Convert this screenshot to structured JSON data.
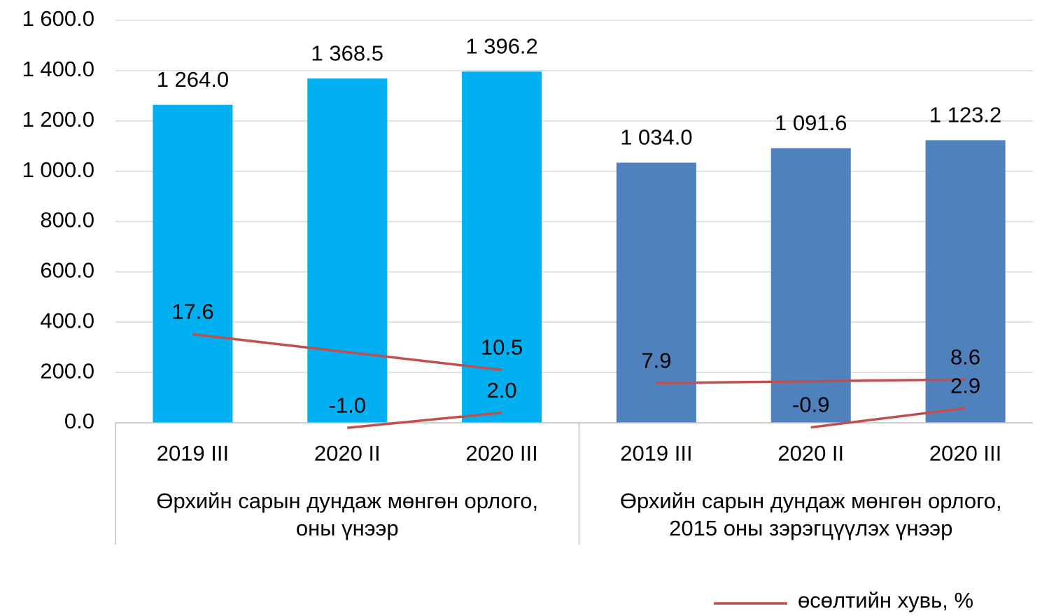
{
  "chart_data": {
    "type": "bar",
    "categories": [
      "2019 III",
      "2020 II",
      "2020 III",
      "2019 III",
      "2020 II",
      "2020 III"
    ],
    "groups": [
      {
        "label": [
          "Өрхийн сарын дундаж мөнгөн орлого,",
          "оны үнээр"
        ]
      },
      {
        "label": [
          "Өрхийн сарын дундаж мөнгөн орлого,",
          "2015 оны зэрэгцүүлэх үнээр"
        ]
      }
    ],
    "values": [
      1264.0,
      1368.5,
      1396.2,
      1034.0,
      1091.6,
      1123.2
    ],
    "value_labels": [
      "1 264.0",
      "1 368.5",
      "1 396.2",
      "1 034.0",
      "1 091.6",
      "1 123.2"
    ],
    "colors": [
      "#00b0f0",
      "#00b0f0",
      "#00b0f0",
      "#4f81bd",
      "#4f81bd",
      "#4f81bd"
    ],
    "ylim": [
      0,
      1600
    ],
    "yticks": [
      {
        "value": 0,
        "label": "0.0"
      },
      {
        "value": 200,
        "label": "200.0"
      },
      {
        "value": 400,
        "label": "400.0"
      },
      {
        "value": 600,
        "label": "600.0"
      },
      {
        "value": 800,
        "label": "800.0"
      },
      {
        "value": 1000,
        "label": "1 000.0"
      },
      {
        "value": 1200,
        "label": "1 200.0"
      },
      {
        "value": 1400,
        "label": "1 400.0"
      },
      {
        "value": 1600,
        "label": "1 600.0"
      }
    ],
    "y2lim": [
      0,
      80
    ],
    "grid": true,
    "connect_gaps": true,
    "legend": "bottom-right",
    "lines": [
      {
        "name": "өсөлтийн хувь, %",
        "color": "#c0504d",
        "axis": "y2",
        "values": [
          17.6,
          null,
          10.5,
          7.9,
          null,
          8.6
        ],
        "value_labels": [
          "17.6",
          null,
          "10.5",
          "7.9",
          null,
          "8.6"
        ]
      },
      {
        "color": "#c0504d",
        "axis": "y2",
        "values": [
          null,
          -1.0,
          2.0,
          null,
          -0.9,
          2.9
        ],
        "value_labels": [
          null,
          "-1.0",
          "2.0",
          null,
          "-0.9",
          "2.9"
        ]
      }
    ]
  }
}
